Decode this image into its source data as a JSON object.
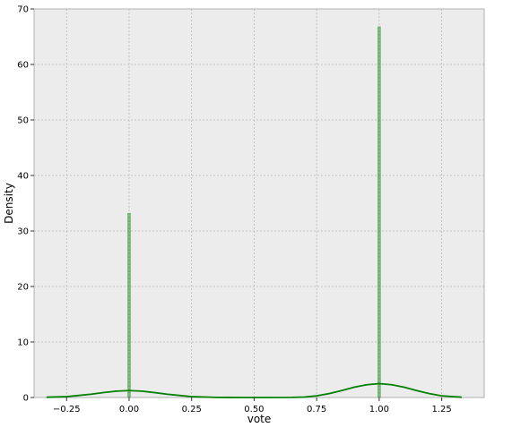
{
  "chart_data": {
    "type": "bar",
    "title": "",
    "xlabel": "vote",
    "ylabel": "Density",
    "xlim": [
      -0.38,
      1.42
    ],
    "ylim": [
      0,
      70
    ],
    "xticks": [
      -0.25,
      0.0,
      0.25,
      0.5,
      0.75,
      1.0,
      1.25
    ],
    "xtick_labels": [
      "−0.25",
      "0.00",
      "0.25",
      "0.50",
      "0.75",
      "1.00",
      "1.25"
    ],
    "yticks": [
      0,
      10,
      20,
      30,
      40,
      50,
      60,
      70
    ],
    "ytick_labels": [
      "0",
      "10",
      "20",
      "30",
      "40",
      "50",
      "60",
      "70"
    ],
    "grid": true,
    "series": [
      {
        "kind": "histogram",
        "color": "#008000",
        "bins": [
          {
            "x": 0.0,
            "value": 33.2
          },
          {
            "x": 1.0,
            "value": 66.8
          }
        ]
      },
      {
        "kind": "kde",
        "color": "#008000",
        "x": [
          -0.33,
          -0.25,
          -0.15,
          -0.1,
          -0.05,
          0.0,
          0.05,
          0.1,
          0.15,
          0.25,
          0.35,
          0.45,
          0.55,
          0.65,
          0.7,
          0.75,
          0.8,
          0.85,
          0.9,
          0.95,
          1.0,
          1.05,
          1.1,
          1.15,
          1.2,
          1.25,
          1.33
        ],
        "y": [
          0.05,
          0.15,
          0.6,
          0.9,
          1.15,
          1.25,
          1.15,
          0.9,
          0.6,
          0.15,
          0.02,
          0.0,
          0.0,
          0.02,
          0.08,
          0.3,
          0.7,
          1.25,
          1.85,
          2.3,
          2.5,
          2.3,
          1.85,
          1.25,
          0.7,
          0.3,
          0.05
        ]
      }
    ]
  }
}
